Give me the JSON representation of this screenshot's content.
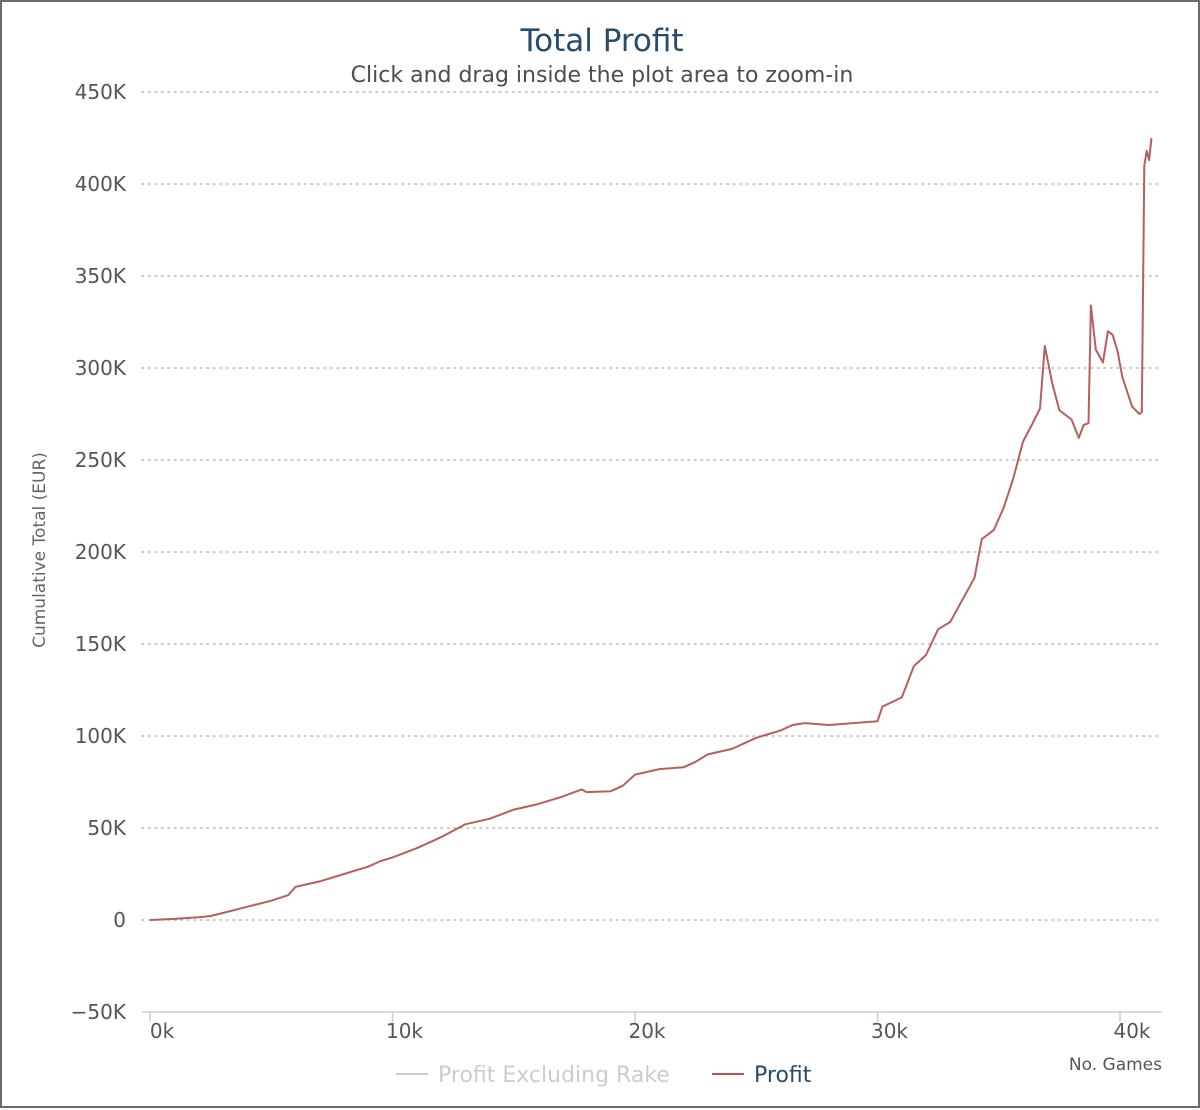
{
  "chart_data": {
    "type": "line",
    "title": "Total Profit",
    "subtitle": "Click and drag inside the plot area to zoom-in",
    "ylabel": "Cumulative Total (EUR)",
    "xlabel": "No. Games",
    "xlim": [
      0,
      41300
    ],
    "ylim": [
      -50000,
      450000
    ],
    "yticks": [
      {
        "value": -50000,
        "label": "−50K"
      },
      {
        "value": 0,
        "label": "0"
      },
      {
        "value": 50000,
        "label": "50K"
      },
      {
        "value": 100000,
        "label": "100K"
      },
      {
        "value": 150000,
        "label": "150K"
      },
      {
        "value": 200000,
        "label": "200K"
      },
      {
        "value": 250000,
        "label": "250K"
      },
      {
        "value": 300000,
        "label": "300K"
      },
      {
        "value": 350000,
        "label": "350K"
      },
      {
        "value": 400000,
        "label": "400K"
      },
      {
        "value": 450000,
        "label": "450K"
      }
    ],
    "xticks": [
      {
        "value": 0,
        "label": "0k"
      },
      {
        "value": 10000,
        "label": "10k"
      },
      {
        "value": 20000,
        "label": "20k"
      },
      {
        "value": 30000,
        "label": "30k"
      },
      {
        "value": 40000,
        "label": "40k"
      }
    ],
    "grid": "horizontal-dotted",
    "legend_position": "bottom",
    "legend": [
      {
        "name": "Profit Excluding Rake",
        "color": "#cccccc",
        "text_color": "#cccccc",
        "hidden": true
      },
      {
        "name": "Profit",
        "color": "#c0504d",
        "text_color": "#274b6d",
        "hidden": false
      }
    ],
    "series": [
      {
        "name": "Profit",
        "color": "#b5605c",
        "points": [
          [
            0,
            0
          ],
          [
            1000,
            600
          ],
          [
            2000,
            1500
          ],
          [
            2500,
            2200
          ],
          [
            3000,
            3800
          ],
          [
            4000,
            7200
          ],
          [
            5000,
            10500
          ],
          [
            5700,
            13500
          ],
          [
            6000,
            18000
          ],
          [
            7000,
            21000
          ],
          [
            8000,
            25000
          ],
          [
            9000,
            29000
          ],
          [
            9500,
            32000
          ],
          [
            10000,
            34000
          ],
          [
            11000,
            39000
          ],
          [
            12000,
            45000
          ],
          [
            13000,
            52000
          ],
          [
            14000,
            55000
          ],
          [
            15000,
            60000
          ],
          [
            16000,
            63000
          ],
          [
            17000,
            67000
          ],
          [
            17800,
            71000
          ],
          [
            18000,
            69500
          ],
          [
            19000,
            70000
          ],
          [
            19500,
            73000
          ],
          [
            20000,
            79000
          ],
          [
            21000,
            82000
          ],
          [
            22000,
            83000
          ],
          [
            22500,
            86000
          ],
          [
            23000,
            90000
          ],
          [
            24000,
            93000
          ],
          [
            25000,
            99000
          ],
          [
            26000,
            103000
          ],
          [
            26500,
            106000
          ],
          [
            27000,
            107000
          ],
          [
            28000,
            106000
          ],
          [
            29000,
            107000
          ],
          [
            30000,
            108000
          ],
          [
            30200,
            116000
          ],
          [
            31000,
            121000
          ],
          [
            31500,
            138000
          ],
          [
            32000,
            144000
          ],
          [
            32500,
            158000
          ],
          [
            33000,
            162000
          ],
          [
            33500,
            174000
          ],
          [
            34000,
            186000
          ],
          [
            34300,
            207000
          ],
          [
            34800,
            212000
          ],
          [
            35200,
            224000
          ],
          [
            35600,
            240000
          ],
          [
            36000,
            260000
          ],
          [
            36400,
            270000
          ],
          [
            36700,
            278000
          ],
          [
            36900,
            312000
          ],
          [
            37200,
            292000
          ],
          [
            37500,
            277000
          ],
          [
            38000,
            272000
          ],
          [
            38300,
            262000
          ],
          [
            38500,
            269000
          ],
          [
            38700,
            270000
          ],
          [
            38800,
            334000
          ],
          [
            39000,
            310000
          ],
          [
            39300,
            303000
          ],
          [
            39500,
            320000
          ],
          [
            39700,
            318000
          ],
          [
            39900,
            309000
          ],
          [
            40100,
            295000
          ],
          [
            40500,
            279000
          ],
          [
            40800,
            275000
          ],
          [
            40900,
            276000
          ],
          [
            41000,
            410000
          ],
          [
            41100,
            418000
          ],
          [
            41200,
            413000
          ],
          [
            41300,
            425000
          ]
        ]
      }
    ]
  }
}
